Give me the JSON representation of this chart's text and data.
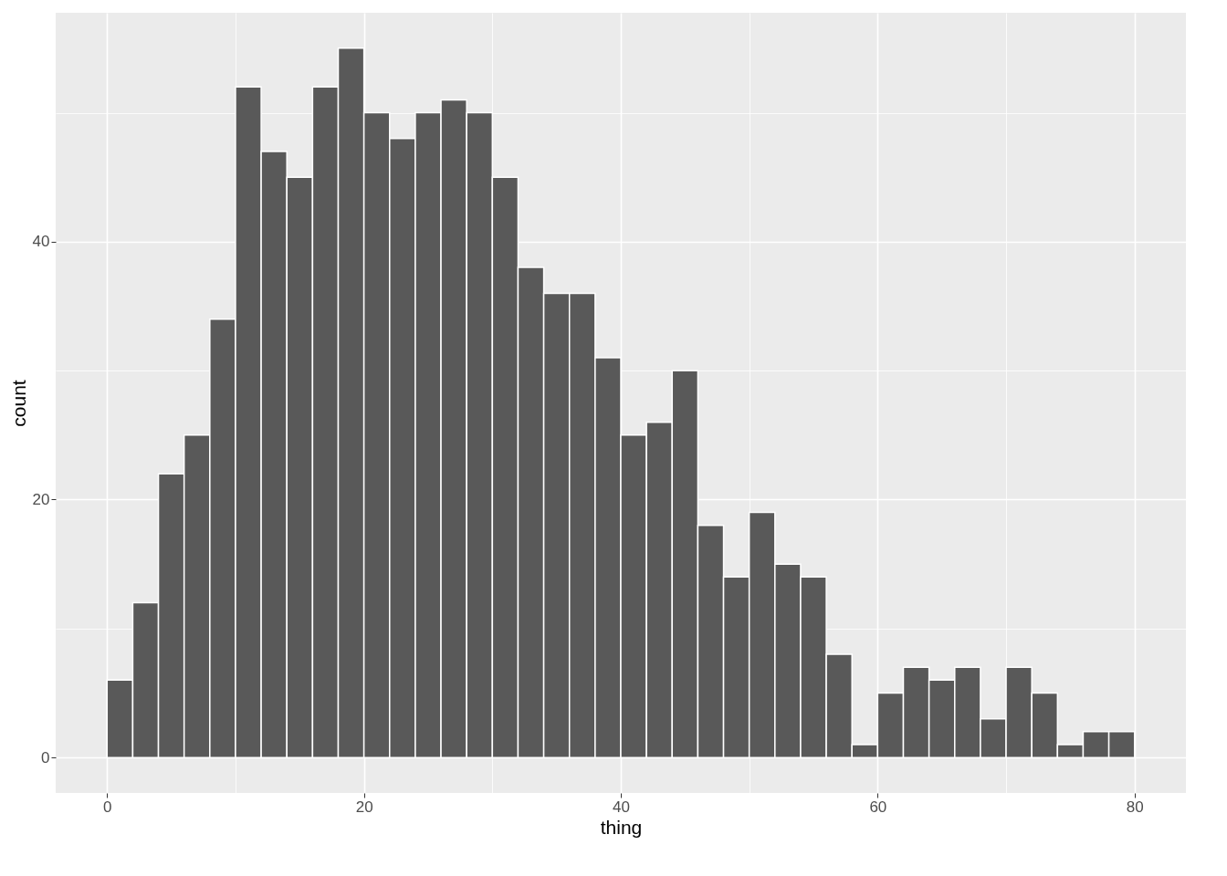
{
  "chart_data": {
    "type": "histogram",
    "xlabel": "thing",
    "ylabel": "count",
    "bins": [
      0,
      2,
      4,
      6,
      8,
      10,
      12,
      14,
      16,
      18,
      20,
      22,
      24,
      26,
      28,
      30,
      32,
      34,
      36,
      38,
      40,
      42,
      44,
      46,
      48,
      50,
      52,
      54,
      56,
      58,
      60,
      62,
      64,
      66,
      68,
      70,
      72,
      74,
      76,
      78,
      80
    ],
    "values": [
      6,
      12,
      22,
      25,
      34,
      52,
      47,
      45,
      52,
      55,
      50,
      48,
      50,
      51,
      50,
      45,
      38,
      36,
      36,
      31,
      25,
      26,
      30,
      18,
      14,
      19,
      15,
      14,
      8,
      1,
      5,
      7,
      6,
      7,
      3,
      7,
      5,
      1,
      2,
      2
    ],
    "color": "#595959",
    "xlim": [
      -4,
      84
    ],
    "ylim": [
      -2.75,
      57.75
    ],
    "xticks": [
      0,
      {
        "value": 10,
        "label": null
      },
      20,
      {
        "value": 30,
        "label": null
      },
      40,
      {
        "value": 50,
        "label": null
      },
      60,
      {
        "value": 70,
        "label": null
      },
      80
    ],
    "yticks": [
      0,
      {
        "value": 10,
        "label": null
      },
      20,
      {
        "value": 30,
        "label": null
      },
      40,
      {
        "value": 50,
        "label": null
      }
    ],
    "grid": true
  }
}
